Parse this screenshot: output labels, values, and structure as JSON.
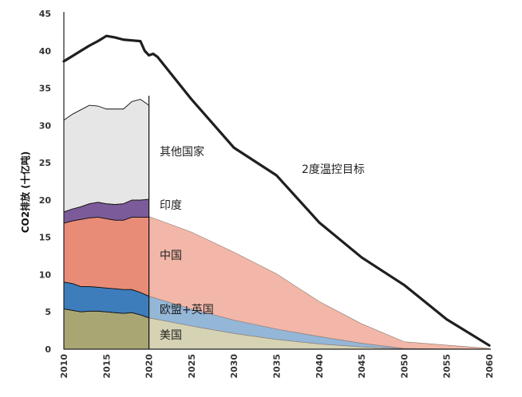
{
  "chart_data": {
    "type": "area",
    "ylabel": "CO2排放 (十亿吨)",
    "ylim": [
      0,
      45
    ],
    "xlim": [
      2010,
      2060
    ],
    "yticks": [
      0,
      5,
      10,
      15,
      20,
      25,
      30,
      35,
      40,
      45
    ],
    "xticks": [
      2010,
      2015,
      2020,
      2025,
      2030,
      2035,
      2040,
      2045,
      2050,
      2055,
      2060
    ],
    "grid": false,
    "legend": "none (inline labels)",
    "historical": {
      "x": [
        2010,
        2011,
        2012,
        2013,
        2014,
        2015,
        2016,
        2017,
        2018,
        2019,
        2020
      ],
      "series": [
        {
          "name": "美国",
          "values": [
            5.4,
            5.2,
            5.0,
            5.1,
            5.1,
            5.0,
            4.9,
            4.8,
            4.9,
            4.6,
            4.2
          ]
        },
        {
          "name": "欧盟+英国",
          "values": [
            3.6,
            3.6,
            3.4,
            3.3,
            3.2,
            3.2,
            3.2,
            3.2,
            3.1,
            3.0,
            2.9
          ]
        },
        {
          "name": "中国",
          "values": [
            7.9,
            8.4,
            9.0,
            9.2,
            9.4,
            9.3,
            9.2,
            9.3,
            9.7,
            10.1,
            10.6
          ]
        },
        {
          "name": "印度",
          "values": [
            1.5,
            1.6,
            1.7,
            1.9,
            2.0,
            2.0,
            2.1,
            2.2,
            2.3,
            2.3,
            2.4
          ]
        },
        {
          "name": "其他国家",
          "values": [
            12.3,
            12.7,
            13.0,
            13.2,
            12.9,
            12.7,
            12.8,
            12.7,
            13.2,
            13.5,
            12.6
          ]
        }
      ]
    },
    "projection": {
      "x": [
        2020,
        2025,
        2030,
        2035,
        2040,
        2045,
        2050,
        2055,
        2060
      ],
      "series": [
        {
          "name": "美国",
          "values": [
            4.2,
            3.1,
            2.1,
            1.3,
            0.7,
            0.3,
            0.05,
            0.02,
            0.0
          ]
        },
        {
          "name": "欧盟+英国",
          "values": [
            2.9,
            2.3,
            1.8,
            1.4,
            1.0,
            0.5,
            0.05,
            0.02,
            0.0
          ]
        },
        {
          "name": "中国",
          "values": [
            10.7,
            10.3,
            9.1,
            7.4,
            4.7,
            2.6,
            0.9,
            0.5,
            0.1
          ]
        }
      ]
    },
    "target_line": {
      "name": "2度温控目标",
      "x": [
        2010,
        2011,
        2012,
        2013,
        2014,
        2015,
        2016,
        2017,
        2018,
        2019,
        2019.5,
        2020,
        2020.5,
        2021,
        2025,
        2030,
        2035,
        2040,
        2045,
        2050,
        2055,
        2060
      ],
      "y": [
        38.6,
        39.3,
        40.0,
        40.7,
        41.3,
        42.0,
        41.8,
        41.5,
        41.4,
        41.3,
        40.0,
        39.4,
        39.6,
        39.2,
        33.5,
        27.0,
        23.3,
        17.0,
        12.3,
        8.6,
        4.0,
        0.5
      ]
    },
    "labels": {
      "target": "2度温控目标",
      "other": "其他国家",
      "india": "印度",
      "china": "中国",
      "eu": "欧盟+英国",
      "us": "美国"
    },
    "colors": {
      "us_hist": "#aaa674",
      "eu_hist": "#3e7dbb",
      "china_hist": "#e88c78",
      "india_hist": "#7c5b9a",
      "other_hist": "#e6e6e6",
      "us_proj": "#d6d3b4",
      "eu_proj": "#94b6d7",
      "china_proj": "#f2b7a8",
      "target_line": "#1f1f1f"
    }
  }
}
